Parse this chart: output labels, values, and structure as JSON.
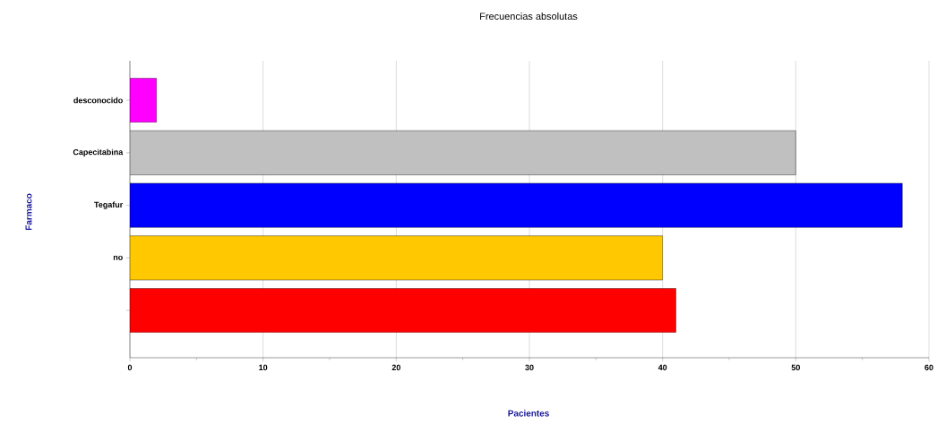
{
  "chart_data": {
    "type": "bar",
    "orientation": "horizontal",
    "title": "Frecuencias absolutas",
    "xlabel": "Pacientes",
    "ylabel": "Farmaco",
    "categories": [
      "desconocido",
      "Capecitabina",
      "Tegafur",
      "no",
      null
    ],
    "values": [
      2,
      50,
      58,
      40,
      41
    ],
    "colors": [
      "#ff00ff",
      "#c0c0c0",
      "#0000ff",
      "#ffc800",
      "#ff0000"
    ],
    "xlim": [
      0,
      60
    ],
    "xticks": [
      0,
      10,
      20,
      30,
      40,
      50,
      60
    ],
    "grid": "x"
  }
}
